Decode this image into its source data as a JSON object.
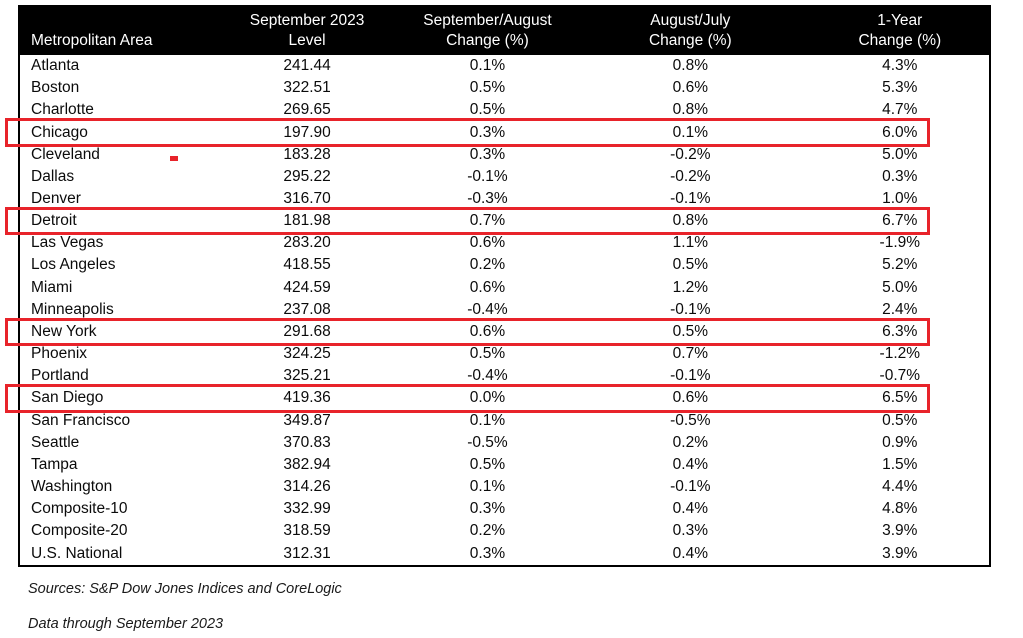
{
  "chart_data": {
    "type": "table",
    "columns": [
      {
        "line1": "",
        "line2": "Metropolitan Area"
      },
      {
        "line1": "September 2023",
        "line2": "Level"
      },
      {
        "line1": "September/August",
        "line2": "Change (%)"
      },
      {
        "line1": "August/July",
        "line2": "Change (%)"
      },
      {
        "line1": "1-Year",
        "line2": "Change (%)"
      }
    ],
    "rows": [
      {
        "area": "Atlanta",
        "level": "241.44",
        "sep_aug": "0.1%",
        "aug_jul": "0.8%",
        "one_year": "4.3%",
        "highlighted": false
      },
      {
        "area": "Boston",
        "level": "322.51",
        "sep_aug": "0.5%",
        "aug_jul": "0.6%",
        "one_year": "5.3%",
        "highlighted": false
      },
      {
        "area": "Charlotte",
        "level": "269.65",
        "sep_aug": "0.5%",
        "aug_jul": "0.8%",
        "one_year": "4.7%",
        "highlighted": false
      },
      {
        "area": "Chicago",
        "level": "197.90",
        "sep_aug": "0.3%",
        "aug_jul": "0.1%",
        "one_year": "6.0%",
        "highlighted": true
      },
      {
        "area": "Cleveland",
        "level": "183.28",
        "sep_aug": "0.3%",
        "aug_jul": "-0.2%",
        "one_year": "5.0%",
        "highlighted": false
      },
      {
        "area": "Dallas",
        "level": "295.22",
        "sep_aug": "-0.1%",
        "aug_jul": "-0.2%",
        "one_year": "0.3%",
        "highlighted": false
      },
      {
        "area": "Denver",
        "level": "316.70",
        "sep_aug": "-0.3%",
        "aug_jul": "-0.1%",
        "one_year": "1.0%",
        "highlighted": false
      },
      {
        "area": "Detroit",
        "level": "181.98",
        "sep_aug": "0.7%",
        "aug_jul": "0.8%",
        "one_year": "6.7%",
        "highlighted": true
      },
      {
        "area": "Las Vegas",
        "level": "283.20",
        "sep_aug": "0.6%",
        "aug_jul": "1.1%",
        "one_year": "-1.9%",
        "highlighted": false
      },
      {
        "area": "Los Angeles",
        "level": "418.55",
        "sep_aug": "0.2%",
        "aug_jul": "0.5%",
        "one_year": "5.2%",
        "highlighted": false
      },
      {
        "area": "Miami",
        "level": "424.59",
        "sep_aug": "0.6%",
        "aug_jul": "1.2%",
        "one_year": "5.0%",
        "highlighted": false
      },
      {
        "area": "Minneapolis",
        "level": "237.08",
        "sep_aug": "-0.4%",
        "aug_jul": "-0.1%",
        "one_year": "2.4%",
        "highlighted": false
      },
      {
        "area": "New York",
        "level": "291.68",
        "sep_aug": "0.6%",
        "aug_jul": "0.5%",
        "one_year": "6.3%",
        "highlighted": true
      },
      {
        "area": "Phoenix",
        "level": "324.25",
        "sep_aug": "0.5%",
        "aug_jul": "0.7%",
        "one_year": "-1.2%",
        "highlighted": false
      },
      {
        "area": "Portland",
        "level": "325.21",
        "sep_aug": "-0.4%",
        "aug_jul": "-0.1%",
        "one_year": "-0.7%",
        "highlighted": false
      },
      {
        "area": "San Diego",
        "level": "419.36",
        "sep_aug": "0.0%",
        "aug_jul": "0.6%",
        "one_year": "6.5%",
        "highlighted": true
      },
      {
        "area": "San Francisco",
        "level": "349.87",
        "sep_aug": "0.1%",
        "aug_jul": "-0.5%",
        "one_year": "0.5%",
        "highlighted": false
      },
      {
        "area": "Seattle",
        "level": "370.83",
        "sep_aug": "-0.5%",
        "aug_jul": "0.2%",
        "one_year": "0.9%",
        "highlighted": false
      },
      {
        "area": "Tampa",
        "level": "382.94",
        "sep_aug": "0.5%",
        "aug_jul": "0.4%",
        "one_year": "1.5%",
        "highlighted": false
      },
      {
        "area": "Washington",
        "level": "314.26",
        "sep_aug": "0.1%",
        "aug_jul": "-0.1%",
        "one_year": "4.4%",
        "highlighted": false
      },
      {
        "area": "Composite-10",
        "level": "332.99",
        "sep_aug": "0.3%",
        "aug_jul": "0.4%",
        "one_year": "4.8%",
        "highlighted": false
      },
      {
        "area": "Composite-20",
        "level": "318.59",
        "sep_aug": "0.2%",
        "aug_jul": "0.3%",
        "one_year": "3.9%",
        "highlighted": false
      },
      {
        "area": "U.S. National",
        "level": "312.31",
        "sep_aug": "0.3%",
        "aug_jul": "0.4%",
        "one_year": "3.9%",
        "highlighted": false
      }
    ],
    "highlighted_rows": [
      "Chicago",
      "Detroit",
      "New York",
      "San Diego"
    ],
    "layout": {
      "grid": "off",
      "header_style": "black-band"
    }
  },
  "footer": {
    "sources": "Sources: S&P Dow Jones Indices and CoreLogic",
    "data_through": "Data through September 2023"
  },
  "colors": {
    "header_bg": "#000000",
    "header_text": "#ffffff",
    "body_text": "#0b0b0b",
    "highlight_red": "#e8232a"
  }
}
